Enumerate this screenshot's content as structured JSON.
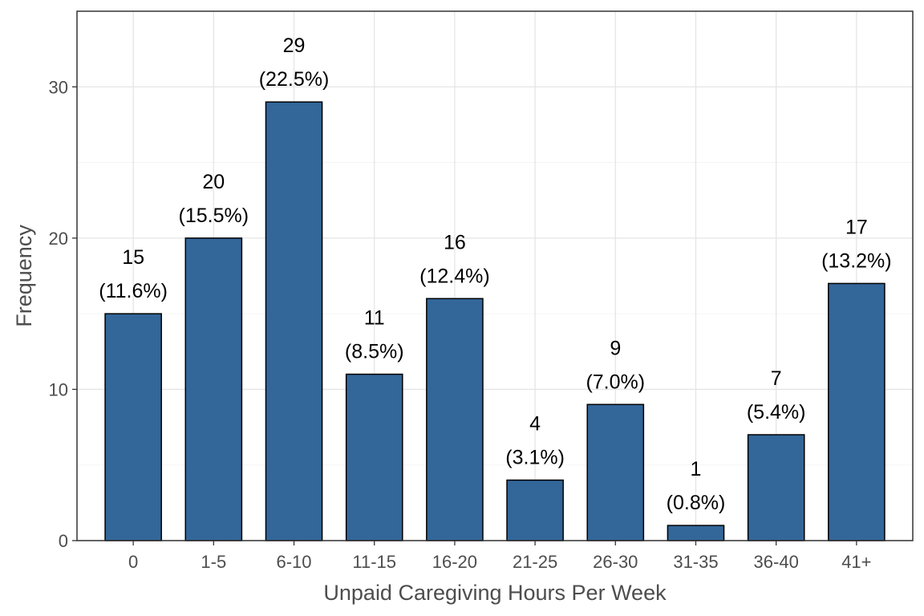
{
  "chart_data": {
    "type": "bar",
    "categories": [
      "0",
      "1-5",
      "6-10",
      "11-15",
      "16-20",
      "21-25",
      "26-30",
      "31-35",
      "36-40",
      "41+"
    ],
    "values": [
      15,
      20,
      29,
      11,
      16,
      4,
      9,
      1,
      7,
      17
    ],
    "value_labels": [
      "15",
      "20",
      "29",
      "11",
      "16",
      "4",
      "9",
      "1",
      "7",
      "17"
    ],
    "percent_labels": [
      "(11.6%)",
      "(15.5%)",
      "(22.5%)",
      "(8.5%)",
      "(12.4%)",
      "(3.1%)",
      "(7.0%)",
      "(0.8%)",
      "(5.4%)",
      "(13.2%)"
    ],
    "xlabel": "Unpaid Caregiving Hours Per Week",
    "ylabel": "Frequency",
    "ylim": [
      0,
      35
    ],
    "yticks": [
      0,
      10,
      20,
      30
    ],
    "ytick_labels": [
      "0",
      "10",
      "20",
      "30"
    ],
    "grid": true,
    "bar_color": "#336699",
    "bar_edge_color": "#000000"
  }
}
